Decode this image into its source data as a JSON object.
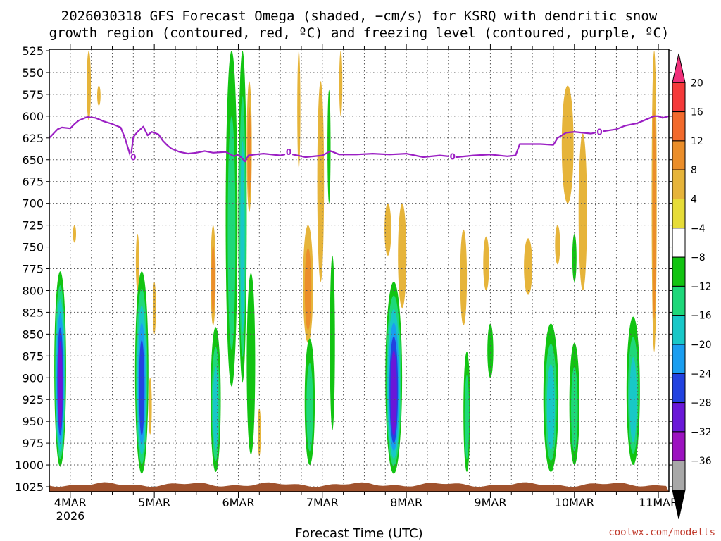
{
  "chart_data": {
    "type": "heatmap",
    "title_line1": "2026030318 GFS Forecast Omega (shaded, −cm/s) for KSRQ with dendritic snow",
    "title_line2": "growth region (contoured, red, ºC) and freezing level (contoured, purple, ºC)",
    "xlabel": "Forecast Time (UTC)",
    "credit": "coolwx.com/modelts",
    "x_ticks": [
      {
        "label": "4MAR",
        "day": 4
      },
      {
        "label": "5MAR",
        "day": 5
      },
      {
        "label": "6MAR",
        "day": 6
      },
      {
        "label": "7MAR",
        "day": 7
      },
      {
        "label": "8MAR",
        "day": 8
      },
      {
        "label": "9MAR",
        "day": 9
      },
      {
        "label": "10MAR",
        "day": 10
      },
      {
        "label": "11MAR",
        "day": 11
      }
    ],
    "x_year_label": "2026",
    "xlim_day": [
      3.75,
      11.125
    ],
    "y_ticks": [
      525,
      550,
      575,
      600,
      625,
      650,
      675,
      700,
      725,
      750,
      775,
      800,
      825,
      850,
      875,
      900,
      925,
      950,
      975,
      1000,
      1025
    ],
    "ylim_hpa": [
      525,
      1025
    ],
    "colorbar": {
      "levels": [
        "20",
        "16",
        "12",
        "8",
        "4",
        "−4",
        "−8",
        "−12",
        "−16",
        "−20",
        "−24",
        "−28",
        "−32",
        "−36"
      ],
      "colors": [
        "#f0307a",
        "#f53a3a",
        "#f26a2c",
        "#eb8e2a",
        "#e6b43a",
        "#e6dc38",
        "#ffffff",
        "#12c412",
        "#1ed87a",
        "#18c8c8",
        "#1a9ef0",
        "#2242e0",
        "#6a18d8",
        "#9c12c0",
        "#a8a8a8",
        "#000000"
      ]
    },
    "freezing_level": {
      "label": "0",
      "days": [
        3.75,
        3.85,
        3.9,
        4.0,
        4.05,
        4.1,
        4.2,
        4.3,
        4.4,
        4.5,
        4.6,
        4.65,
        4.72,
        4.75,
        4.8,
        4.87,
        4.92,
        4.97,
        5.05,
        5.1,
        5.15,
        5.2,
        5.3,
        5.4,
        5.5,
        5.6,
        5.7,
        5.85,
        5.95,
        6.0,
        6.08,
        6.12,
        6.2,
        6.3,
        6.5,
        6.6,
        6.8,
        7.0,
        7.1,
        7.2,
        7.4,
        7.6,
        7.8,
        8.0,
        8.2,
        8.4,
        8.6,
        8.8,
        9.0,
        9.2,
        9.3,
        9.35,
        9.5,
        9.6,
        9.75,
        9.8,
        9.9,
        10.0,
        10.1,
        10.2,
        10.3,
        10.5,
        10.6,
        10.75,
        10.85,
        10.95,
        11.0,
        11.05,
        11.125
      ],
      "hpa": [
        625,
        615,
        613,
        614,
        609,
        605,
        601,
        602,
        606,
        609,
        613,
        625,
        647,
        624,
        618,
        612,
        622,
        618,
        621,
        628,
        633,
        637,
        641,
        643,
        642,
        640,
        642,
        641,
        646,
        644,
        652,
        645,
        644,
        643,
        645,
        643,
        647,
        645,
        640,
        644,
        644,
        643,
        644,
        643,
        647,
        645,
        647,
        645,
        644,
        646,
        645,
        632,
        632,
        632,
        633,
        625,
        619,
        618,
        619,
        620,
        618,
        615,
        611,
        608,
        604,
        600,
        600,
        602,
        600
      ]
    },
    "omega_cells": [
      {
        "day": 3.88,
        "top": 778,
        "bottom": 1002,
        "hw": 0.07,
        "levels": [
          "-8",
          "-12",
          "-16",
          "-20",
          "-24",
          "-28"
        ]
      },
      {
        "day": 4.05,
        "top": 725,
        "bottom": 745,
        "hw": 0.018,
        "levels": [
          "4"
        ]
      },
      {
        "day": 4.22,
        "top": 525,
        "bottom": 605,
        "hw": 0.025,
        "levels": [
          "4"
        ]
      },
      {
        "day": 4.34,
        "top": 565,
        "bottom": 588,
        "hw": 0.02,
        "levels": [
          "4"
        ]
      },
      {
        "day": 4.8,
        "top": 735,
        "bottom": 800,
        "hw": 0.02,
        "levels": [
          "4"
        ]
      },
      {
        "day": 4.85,
        "top": 778,
        "bottom": 1010,
        "hw": 0.08,
        "levels": [
          "-8",
          "-12",
          "-16",
          "-20",
          "-24"
        ]
      },
      {
        "day": 4.95,
        "top": 900,
        "bottom": 965,
        "hw": 0.02,
        "levels": [
          "4"
        ]
      },
      {
        "day": 5.0,
        "top": 790,
        "bottom": 850,
        "hw": 0.012,
        "levels": [
          "4"
        ]
      },
      {
        "day": 5.7,
        "top": 725,
        "bottom": 840,
        "hw": 0.03,
        "levels": [
          "4",
          "8"
        ]
      },
      {
        "day": 5.73,
        "top": 842,
        "bottom": 1008,
        "hw": 0.06,
        "levels": [
          "-8",
          "-12",
          "-16"
        ]
      },
      {
        "day": 5.92,
        "top": 525,
        "bottom": 910,
        "hw": 0.07,
        "levels": [
          "-8",
          "-12"
        ]
      },
      {
        "day": 6.05,
        "top": 525,
        "bottom": 905,
        "hw": 0.05,
        "levels": [
          "-8",
          "-12",
          "-16"
        ]
      },
      {
        "day": 6.13,
        "top": 560,
        "bottom": 710,
        "hw": 0.03,
        "levels": [
          "4",
          "8"
        ]
      },
      {
        "day": 6.15,
        "top": 780,
        "bottom": 988,
        "hw": 0.05,
        "levels": [
          "-8"
        ]
      },
      {
        "day": 6.25,
        "top": 935,
        "bottom": 990,
        "hw": 0.015,
        "levels": [
          "4"
        ]
      },
      {
        "day": 6.72,
        "top": 525,
        "bottom": 660,
        "hw": 0.015,
        "levels": [
          "4"
        ]
      },
      {
        "day": 6.83,
        "top": 725,
        "bottom": 860,
        "hw": 0.06,
        "levels": [
          "4",
          "8"
        ]
      },
      {
        "day": 6.85,
        "top": 855,
        "bottom": 1000,
        "hw": 0.06,
        "levels": [
          "-8",
          "-12"
        ]
      },
      {
        "day": 6.98,
        "top": 560,
        "bottom": 790,
        "hw": 0.04,
        "levels": [
          "4"
        ]
      },
      {
        "day": 7.08,
        "top": 570,
        "bottom": 700,
        "hw": 0.018,
        "levels": [
          "-8"
        ]
      },
      {
        "day": 7.12,
        "top": 760,
        "bottom": 960,
        "hw": 0.03,
        "levels": [
          "-8"
        ]
      },
      {
        "day": 7.22,
        "top": 525,
        "bottom": 600,
        "hw": 0.015,
        "levels": [
          "4"
        ]
      },
      {
        "day": 7.78,
        "top": 700,
        "bottom": 760,
        "hw": 0.04,
        "levels": [
          "4"
        ]
      },
      {
        "day": 7.85,
        "top": 790,
        "bottom": 1010,
        "hw": 0.1,
        "levels": [
          "-8",
          "-12",
          "-16",
          "-20",
          "-24",
          "-28"
        ]
      },
      {
        "day": 7.95,
        "top": 700,
        "bottom": 820,
        "hw": 0.05,
        "levels": [
          "4"
        ]
      },
      {
        "day": 8.68,
        "top": 730,
        "bottom": 840,
        "hw": 0.04,
        "levels": [
          "4"
        ]
      },
      {
        "day": 8.72,
        "top": 870,
        "bottom": 1008,
        "hw": 0.04,
        "levels": [
          "-8",
          "-12"
        ]
      },
      {
        "day": 8.95,
        "top": 738,
        "bottom": 800,
        "hw": 0.035,
        "levels": [
          "4"
        ]
      },
      {
        "day": 9.0,
        "top": 838,
        "bottom": 900,
        "hw": 0.035,
        "levels": [
          "-8"
        ]
      },
      {
        "day": 9.45,
        "top": 740,
        "bottom": 805,
        "hw": 0.05,
        "levels": [
          "4"
        ]
      },
      {
        "day": 9.72,
        "top": 838,
        "bottom": 1008,
        "hw": 0.09,
        "levels": [
          "-8",
          "-12",
          "-16"
        ]
      },
      {
        "day": 9.8,
        "top": 725,
        "bottom": 770,
        "hw": 0.03,
        "levels": [
          "4"
        ]
      },
      {
        "day": 9.92,
        "top": 565,
        "bottom": 700,
        "hw": 0.07,
        "levels": [
          "4"
        ]
      },
      {
        "day": 10.0,
        "top": 735,
        "bottom": 790,
        "hw": 0.025,
        "levels": [
          "-8"
        ]
      },
      {
        "day": 10.0,
        "top": 860,
        "bottom": 1000,
        "hw": 0.06,
        "levels": [
          "-8",
          "-12"
        ]
      },
      {
        "day": 10.1,
        "top": 620,
        "bottom": 800,
        "hw": 0.05,
        "levels": [
          "4"
        ]
      },
      {
        "day": 10.7,
        "top": 830,
        "bottom": 1000,
        "hw": 0.08,
        "levels": [
          "-8",
          "-12",
          "-16"
        ]
      },
      {
        "day": 10.95,
        "top": 525,
        "bottom": 870,
        "hw": 0.03,
        "levels": [
          "4",
          "8"
        ]
      }
    ]
  }
}
